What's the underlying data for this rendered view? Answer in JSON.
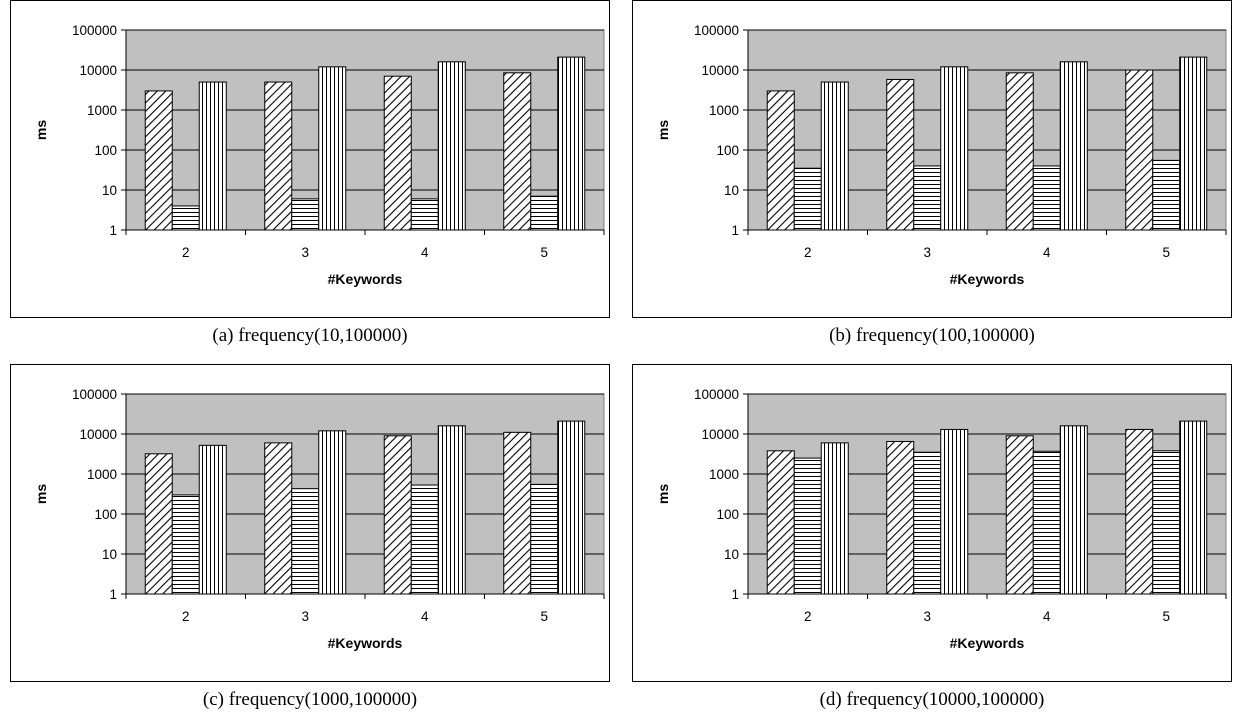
{
  "chart_data": [
    {
      "type": "bar",
      "caption": "(a) frequency(10,100000)",
      "xlabel": "#Keywords",
      "ylabel": "ms",
      "yscale": "log",
      "ylim": [
        1,
        100000
      ],
      "yticks": [
        "1",
        "10",
        "100",
        "1000",
        "10000",
        "100000"
      ],
      "categories": [
        "2",
        "3",
        "4",
        "5"
      ],
      "series": [
        {
          "pattern": "diagonal-hatch",
          "values": [
            3000,
            5000,
            7000,
            8500
          ]
        },
        {
          "pattern": "horizontal-hatch",
          "values": [
            4,
            6,
            6,
            7
          ]
        },
        {
          "pattern": "vertical-hatch",
          "values": [
            5000,
            12000,
            16000,
            21000
          ]
        }
      ],
      "grid": true,
      "plot_background": "#c0c0c0"
    },
    {
      "type": "bar",
      "caption": "(b) frequency(100,100000)",
      "xlabel": "#Keywords",
      "ylabel": "ms",
      "yscale": "log",
      "ylim": [
        1,
        100000
      ],
      "yticks": [
        "1",
        "10",
        "100",
        "1000",
        "10000",
        "100000"
      ],
      "categories": [
        "2",
        "3",
        "4",
        "5"
      ],
      "series": [
        {
          "pattern": "diagonal-hatch",
          "values": [
            3000,
            5800,
            8500,
            10000
          ]
        },
        {
          "pattern": "horizontal-hatch",
          "values": [
            35,
            40,
            40,
            55
          ]
        },
        {
          "pattern": "vertical-hatch",
          "values": [
            5000,
            12000,
            16000,
            21000
          ]
        }
      ],
      "grid": true,
      "plot_background": "#c0c0c0"
    },
    {
      "type": "bar",
      "caption": "(c) frequency(1000,100000)",
      "xlabel": "#Keywords",
      "ylabel": "ms",
      "yscale": "log",
      "ylim": [
        1,
        100000
      ],
      "yticks": [
        "1",
        "10",
        "100",
        "1000",
        "10000",
        "100000"
      ],
      "categories": [
        "2",
        "3",
        "4",
        "5"
      ],
      "series": [
        {
          "pattern": "diagonal-hatch",
          "values": [
            3200,
            6000,
            9000,
            11000
          ]
        },
        {
          "pattern": "horizontal-hatch",
          "values": [
            300,
            430,
            530,
            550
          ]
        },
        {
          "pattern": "vertical-hatch",
          "values": [
            5200,
            12000,
            16000,
            21000
          ]
        }
      ],
      "grid": true,
      "plot_background": "#c0c0c0"
    },
    {
      "type": "bar",
      "caption": "(d) frequency(10000,100000)",
      "xlabel": "#Keywords",
      "ylabel": "ms",
      "yscale": "log",
      "ylim": [
        1,
        100000
      ],
      "yticks": [
        "1",
        "10",
        "100",
        "1000",
        "10000",
        "100000"
      ],
      "categories": [
        "2",
        "3",
        "4",
        "5"
      ],
      "series": [
        {
          "pattern": "diagonal-hatch",
          "values": [
            3800,
            6500,
            9000,
            13000
          ]
        },
        {
          "pattern": "horizontal-hatch",
          "values": [
            2500,
            3500,
            3700,
            3800
          ]
        },
        {
          "pattern": "vertical-hatch",
          "values": [
            6000,
            13000,
            16000,
            21000
          ]
        }
      ],
      "grid": true,
      "plot_background": "#c0c0c0"
    }
  ]
}
